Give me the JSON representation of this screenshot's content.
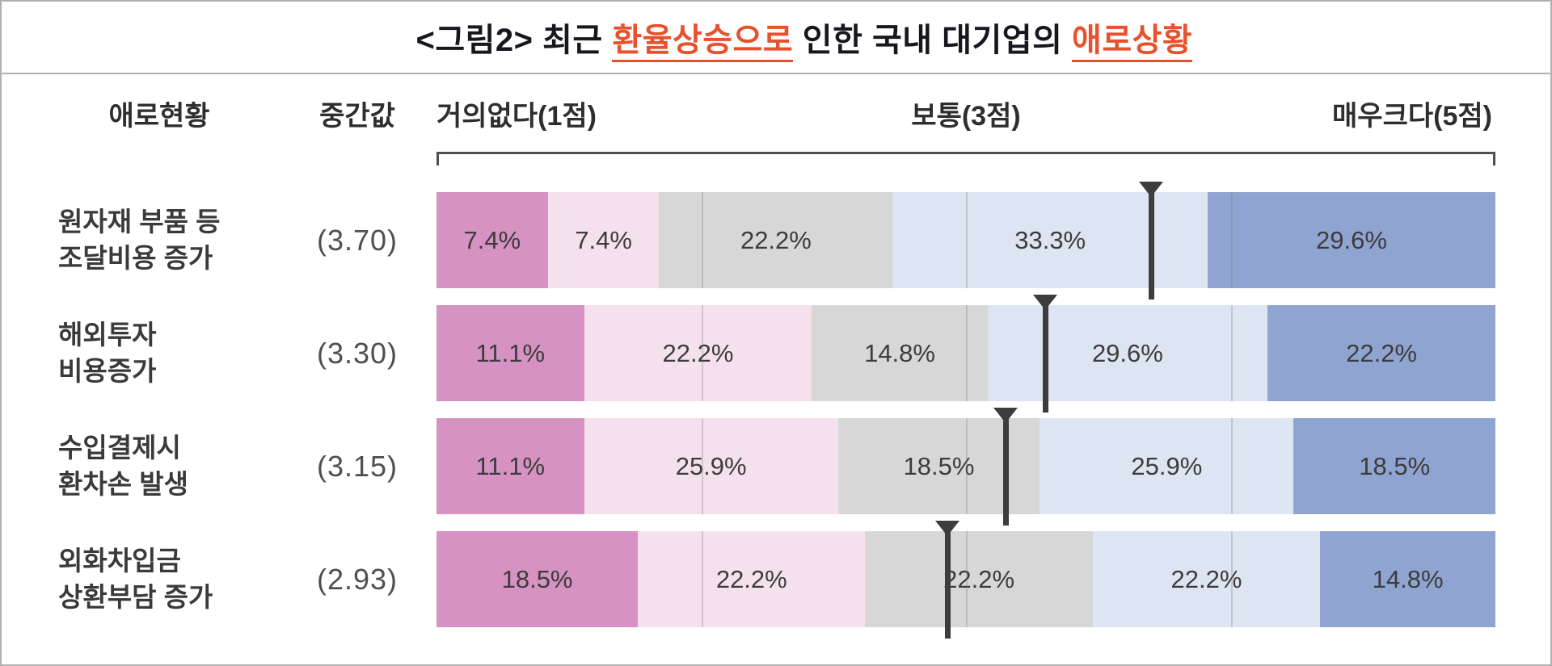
{
  "title": {
    "prefix": "<그림2> 최근 ",
    "accent1": "환율상승으로",
    "middle": " 인한 국내 대기업의 ",
    "accent2": "애로상황",
    "accent_color": "#e8512d"
  },
  "header": {
    "ailment_label": "애로현황",
    "median_label": "중간값",
    "scale_left": "거의없다(1점)",
    "scale_center": "보통(3점)",
    "scale_right": "매우크다(5점)"
  },
  "chart_data": {
    "type": "bar",
    "variant": "horizontal-stacked-likert",
    "title": "<그림2> 최근 환율상승으로 인한 국내 대기업의 애로상황",
    "scale": {
      "min": 1,
      "max": 5
    },
    "scale_labels": [
      "거의없다(1점)",
      "보통(3점)",
      "매우크다(5점)"
    ],
    "gridline_points": [
      2,
      3,
      4
    ],
    "colors": [
      "#d592c2",
      "#f5e1ed",
      "#d7d7d7",
      "#dde4f2",
      "#90a4d2"
    ],
    "marker_color": "#3d3d3d",
    "rows": [
      {
        "label_lines": [
          "원자재 부품 등",
          "조달비용 증가"
        ],
        "median": 3.7,
        "median_text": "(3.70)",
        "values": [
          7.4,
          7.4,
          22.2,
          33.3,
          29.6
        ],
        "labels": [
          "7.4%",
          "7.4%",
          "22.2%",
          "33.3%",
          "29.6%"
        ]
      },
      {
        "label_lines": [
          "해외투자",
          "비용증가"
        ],
        "median": 3.3,
        "median_text": "(3.30)",
        "values": [
          11.1,
          22.2,
          14.8,
          29.6,
          22.2
        ],
        "labels": [
          "11.1%",
          "22.2%",
          "14.8%",
          "29.6%",
          "22.2%"
        ]
      },
      {
        "label_lines": [
          "수입결제시",
          "환차손 발생"
        ],
        "median": 3.15,
        "median_text": "(3.15)",
        "values": [
          11.1,
          25.9,
          18.5,
          25.9,
          18.5
        ],
        "labels": [
          "11.1%",
          "25.9%",
          "18.5%",
          "25.9%",
          "18.5%"
        ]
      },
      {
        "label_lines": [
          "외화차입금",
          "상환부담 증가"
        ],
        "median": 2.93,
        "median_text": "(2.93)",
        "values": [
          18.5,
          22.2,
          22.2,
          22.2,
          14.8
        ],
        "labels": [
          "18.5%",
          "22.2%",
          "22.2%",
          "22.2%",
          "14.8%"
        ]
      }
    ]
  }
}
